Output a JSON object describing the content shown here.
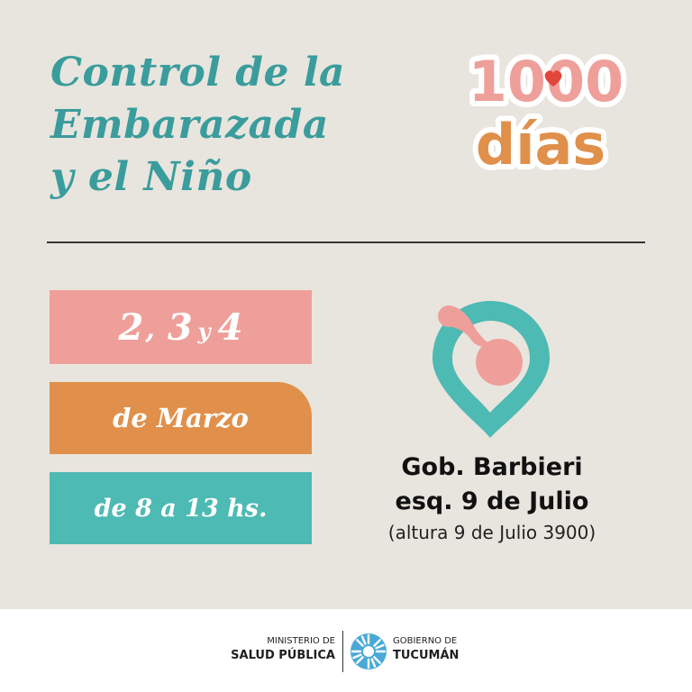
{
  "title": {
    "line1": "Control de la",
    "line2": "Embarazada",
    "line3": "y el Niño"
  },
  "logo": {
    "number": "1000",
    "word": "días",
    "icon": "heart-icon"
  },
  "dates": {
    "day1": "2",
    "separator": ",",
    "day2": "3",
    "conjunction": "y",
    "day3": "4",
    "month": "de Marzo",
    "hours": "de 8 a 13 hs."
  },
  "location": {
    "icon": "location-pin-icon",
    "line1": "Gob. Barbieri",
    "line2": "esq. 9 de Julio",
    "line3": "(altura 9 de Julio 3900)"
  },
  "footer": {
    "ministry_top": "MINISTERIO DE",
    "ministry_bottom": "SALUD PÚBLICA",
    "gov_top": "GOBIERNO DE",
    "gov_bottom": "TUCUMÁN",
    "gov_icon": "sun-emblem-icon"
  },
  "colors": {
    "background": "#e8e5de",
    "teal": "#4dbab3",
    "title_teal": "#3a9c9c",
    "pink": "#ef9f9a",
    "orange": "#e0904a",
    "heart_red": "#e2453a"
  }
}
